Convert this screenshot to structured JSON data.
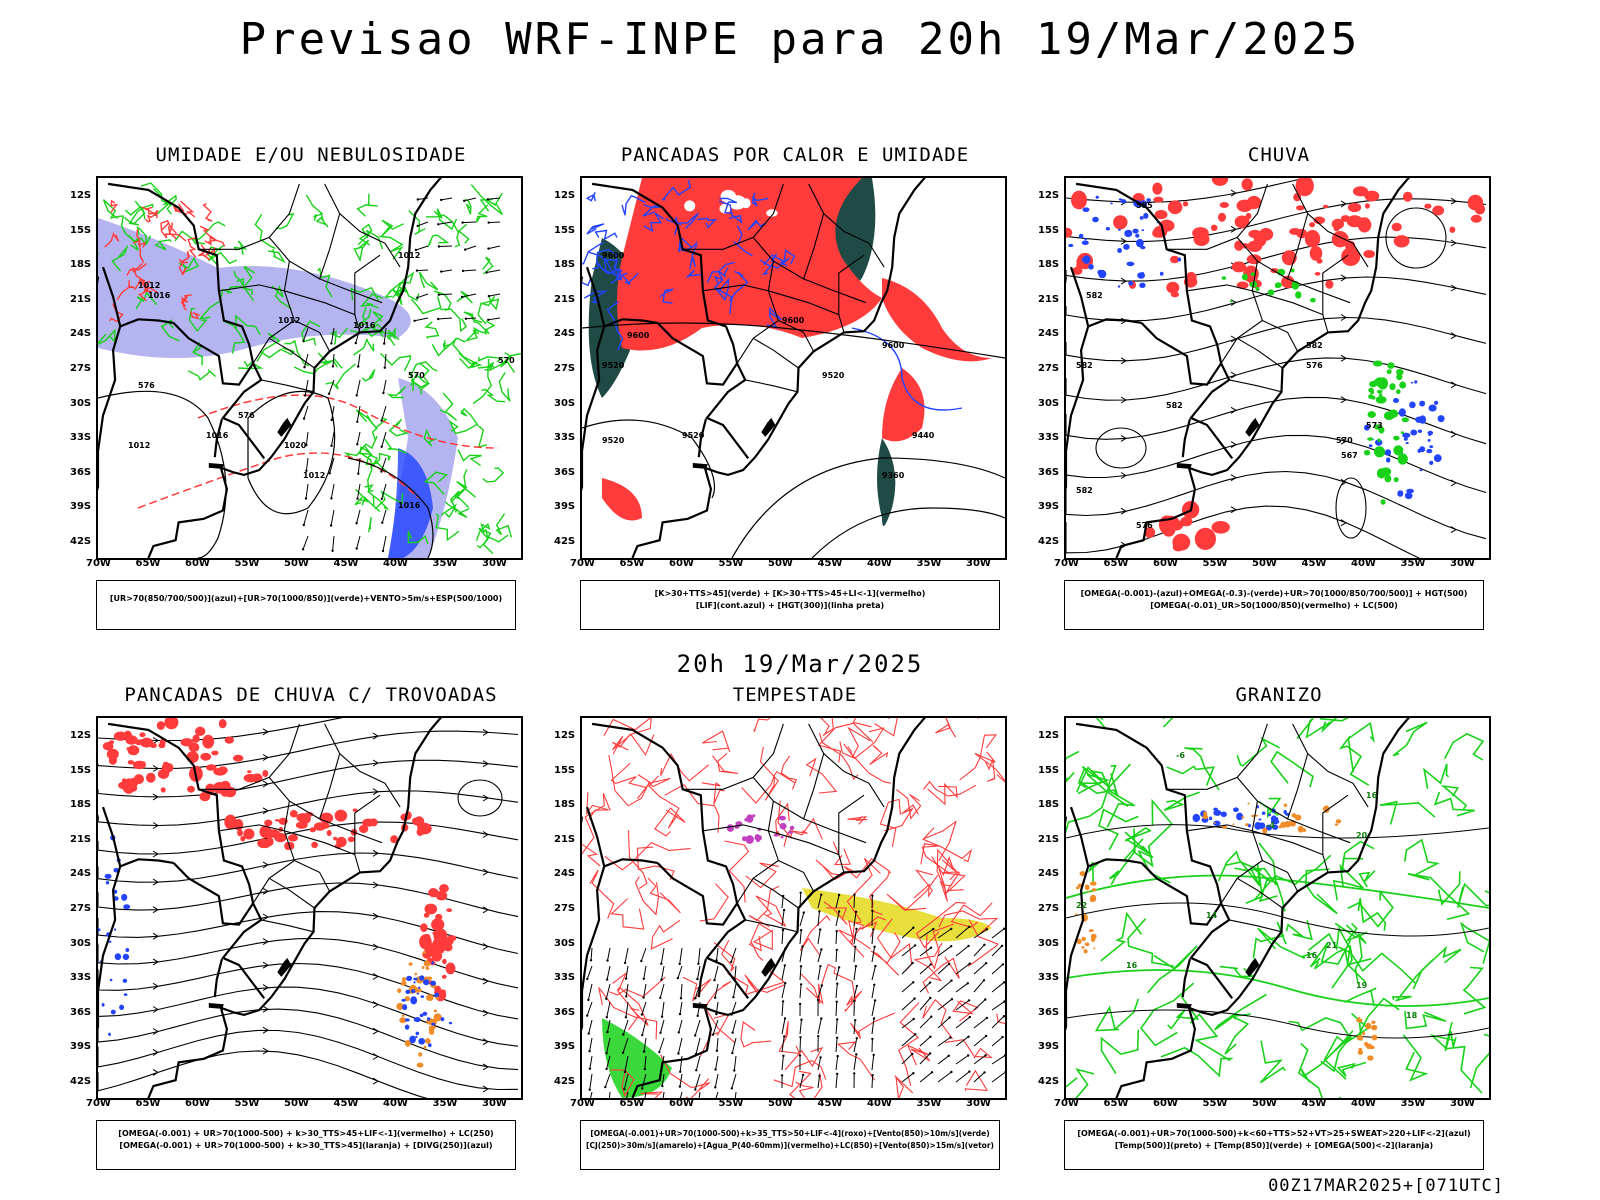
{
  "title": "Previsao WRF-INPE  para 20h 19/Mar/2025",
  "mid_title": "20h 19/Mar/2025",
  "run_stamp": "00Z17MAR2025+[071UTC]",
  "axes": {
    "y_ticks": [
      "12S",
      "15S",
      "18S",
      "21S",
      "24S",
      "27S",
      "30S",
      "33S",
      "36S",
      "39S",
      "42S"
    ],
    "x_ticks": [
      "70W",
      "65W",
      "60W",
      "55W",
      "50W",
      "45W",
      "40W",
      "35W",
      "30W"
    ]
  },
  "panels": [
    {
      "title": "UMIDADE E/OU NEBULOSIDADE",
      "caption": [
        "[UR>70(850/700/500)](azul)+[UR>70(1000/850)](verde)+VENTO>5m/s+ESP(500/1000)"
      ],
      "contour_labels": [
        "1012",
        "1012",
        "1012",
        "1016",
        "1016",
        "1012",
        "1016",
        "1020",
        "1012",
        "576",
        "576",
        "570",
        "570",
        "1016"
      ]
    },
    {
      "title": "PANCADAS POR CALOR E UMIDADE",
      "caption": [
        "[K>30+TTS>45](verde) + [K>30+TTS>45+LI<-1](vermelho)",
        "[LIF](cont.azul) + [HGT(300)](linha preta)"
      ],
      "contour_labels": [
        "9600",
        "9600",
        "9600",
        "9520",
        "9520",
        "9520",
        "9520",
        "9600",
        "9440",
        "9360"
      ]
    },
    {
      "title": "CHUVA",
      "caption": [
        "[OMEGA(-0.001)-(azul)+OMEGA(-0.3)-(verde)+UR>70(1000/850/700/500)] + HGT(500)",
        "[OMEGA(-0.01)_UR>50(1000/850)(vermelho) + LC(500)"
      ],
      "contour_labels": [
        "582",
        "582",
        "582",
        "582",
        "576",
        "570",
        "567",
        "573",
        "576",
        "585",
        "582"
      ]
    },
    {
      "title": "PANCADAS DE CHUVA C/ TROVOADAS",
      "caption": [
        "[OMEGA(-0.001) + UR>70(1000-500) + k>30_TTS>45+LIF<-1](vermelho) + LC(250)",
        "[OMEGA(-0.001) + UR>70(1000-500) + k>30_TTS>45](laranja) + [DIVG(250)](azul)"
      ],
      "contour_labels": []
    },
    {
      "title": "TEMPESTADE",
      "caption": [
        "[OMEGA(-0.001)+UR>70(1000-500)+k>35_TTS>50+LIF<-4](roxo)+[Vento(850)>10m/s](verde)",
        "[CJ(250)>30m/s](amarelo)+[Agua_P(40-60mm)](vermelho)+LC(850)+[Vento(850)>15m/s](vetor)"
      ],
      "contour_labels": []
    },
    {
      "title": "GRANIZO",
      "caption": [
        "[OMEGA(-0.001)+UR>70(1000-500)+k<60+TTS>52+VT>25+SWEAT>220+LIF<-2](azul)",
        "[Temp(500)](preto) + [Temp(850)](verde) + [OMEGA(500)<-2](laranja)"
      ],
      "contour_labels": [
        "-6",
        "-4",
        "16",
        "20",
        "16",
        "21",
        "19",
        "18",
        "22",
        "16",
        "14"
      ]
    }
  ],
  "colors": {
    "red": "#ff3b3b",
    "green": "#19d119",
    "blue": "#2244ff",
    "lavender": "#b4b4f0",
    "darkteal": "#1f4a45",
    "yellow": "#e6dc28",
    "orange": "#f08c28",
    "purple": "#c040c0",
    "black": "#000000"
  }
}
